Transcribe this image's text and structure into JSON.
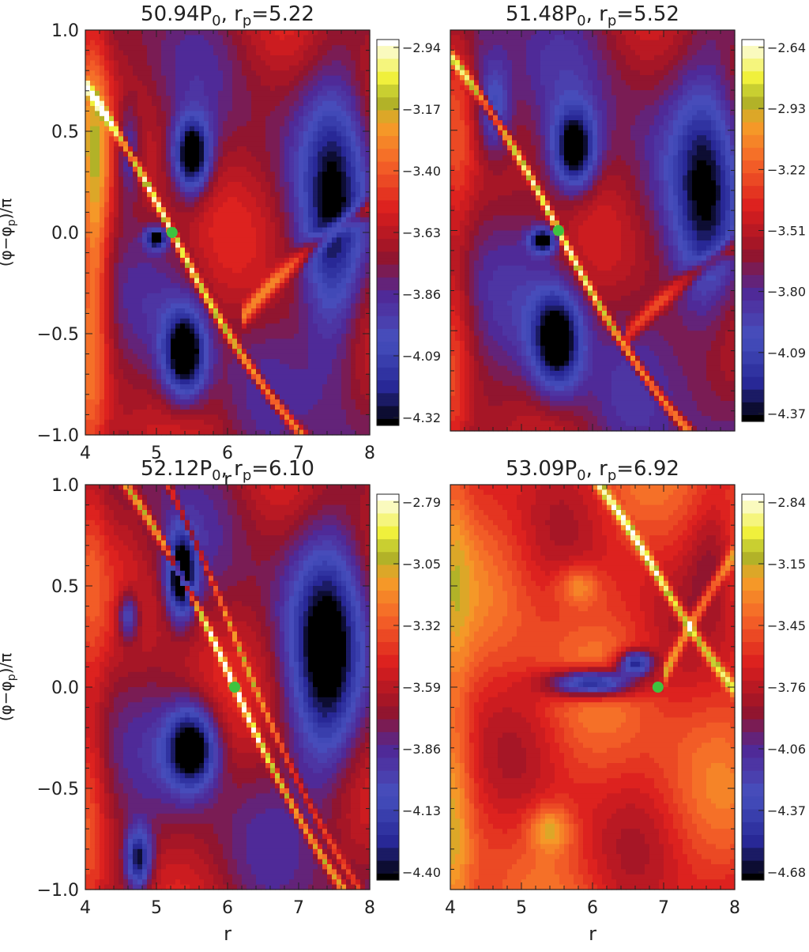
{
  "chart_data": [
    {
      "type": "heatmap",
      "title": "50.94P",
      "title_sub": "0",
      "title_mid": ",  r",
      "title_sub2": "p",
      "title_end": "=5.22",
      "ylabel_main": "(φ−φ",
      "ylabel_sub": "p",
      "ylabel_end": ")/π",
      "xlabel": "r",
      "xlim": [
        4,
        8
      ],
      "ylim": [
        -1.0,
        1.0
      ],
      "x_ticks": [
        "4",
        "5",
        "6",
        "7",
        "8"
      ],
      "y_ticks": [
        "1.0",
        "0.5",
        "0.0",
        "−0.5",
        "−1.0"
      ],
      "colorbar_ticks": [
        "−2.94",
        "−3.17",
        "−3.40",
        "−3.63",
        "−3.86",
        "−4.09",
        "−4.32"
      ],
      "colorbar_range": [
        -4.32,
        -2.94
      ],
      "planet": {
        "r": 5.22,
        "phi": 0.0
      },
      "background_level": 0.45,
      "features": [
        {
          "r": 5.5,
          "phi": 0.38,
          "sr": 0.25,
          "sp": 0.18,
          "amp": -0.55
        },
        {
          "r": 5.4,
          "phi": -0.6,
          "sr": 0.3,
          "sp": 0.22,
          "amp": -0.55
        },
        {
          "r": 4.6,
          "phi": 0.4,
          "sr": 0.18,
          "sp": 0.25,
          "amp": -0.25
        },
        {
          "r": 7.5,
          "phi": 0.0,
          "sr": 0.45,
          "sp": 0.7,
          "amp": -0.4
        },
        {
          "r": 4.15,
          "phi": 0.1,
          "sr": 0.2,
          "sp": 0.8,
          "amp": 0.2
        },
        {
          "r": 5.0,
          "phi": -0.03,
          "sr": 0.15,
          "sp": 0.05,
          "amp": -0.5
        }
      ],
      "spirals": [
        {
          "k": 0.7,
          "amp": 0.55,
          "width": 0.035,
          "r0": 4.0,
          "r1": 8.0
        },
        {
          "k": -0.55,
          "amp": 0.35,
          "width": 0.05,
          "r0": 6.2,
          "r1": 8.0,
          "offset": -0.9
        }
      ]
    },
    {
      "type": "heatmap",
      "title": "51.48P",
      "title_sub": "0",
      "title_mid": ",  r",
      "title_sub2": "p",
      "title_end": "=5.52",
      "ylabel_main": "",
      "ylabel_sub": "",
      "ylabel_end": "",
      "xlabel": "",
      "xlim": [
        4,
        8
      ],
      "ylim": [
        -1.0,
        1.0
      ],
      "x_ticks": [],
      "y_ticks": [],
      "colorbar_ticks": [
        "−2.64",
        "−2.93",
        "−3.22",
        "−3.51",
        "−3.80",
        "−4.09",
        "−4.37"
      ],
      "colorbar_range": [
        -4.37,
        -2.64
      ],
      "planet": {
        "r": 5.52,
        "phi": 0.0
      },
      "background_level": 0.42,
      "features": [
        {
          "r": 5.75,
          "phi": 0.4,
          "sr": 0.3,
          "sp": 0.2,
          "amp": -0.5
        },
        {
          "r": 5.5,
          "phi": -0.55,
          "sr": 0.35,
          "sp": 0.25,
          "amp": -0.5
        },
        {
          "r": 4.6,
          "phi": 0.6,
          "sr": 0.25,
          "sp": 0.25,
          "amp": -0.3
        },
        {
          "r": 7.6,
          "phi": 0.1,
          "sr": 0.45,
          "sp": 0.65,
          "amp": -0.35
        },
        {
          "r": 5.3,
          "phi": -0.05,
          "sr": 0.18,
          "sp": 0.06,
          "amp": -0.5
        }
      ],
      "spirals": [
        {
          "k": 0.7,
          "amp": 0.55,
          "width": 0.035,
          "r0": 4.0,
          "r1": 8.0
        },
        {
          "k": -0.5,
          "amp": 0.3,
          "width": 0.05,
          "r0": 6.5,
          "r1": 8.0,
          "offset": -0.95
        }
      ]
    },
    {
      "type": "heatmap",
      "title": "52.12P",
      "title_sub": "0",
      "title_mid": ",  r",
      "title_sub2": "p",
      "title_end": "=6.10",
      "ylabel_main": "(φ−φ",
      "ylabel_sub": "p",
      "ylabel_end": ")/π",
      "xlabel": "r",
      "xlim": [
        4,
        8
      ],
      "ylim": [
        -1.0,
        1.0
      ],
      "x_ticks": [
        "4",
        "5",
        "6",
        "7",
        "8"
      ],
      "y_ticks": [
        "1.0",
        "0.5",
        "0.0",
        "−0.5",
        "−1.0"
      ],
      "colorbar_ticks": [
        "−2.79",
        "−3.05",
        "−3.32",
        "−3.59",
        "−3.86",
        "−4.13",
        "−4.40"
      ],
      "colorbar_range": [
        -4.4,
        -2.79
      ],
      "planet": {
        "r": 6.1,
        "phi": 0.0
      },
      "background_level": 0.45,
      "features": [
        {
          "r": 5.35,
          "phi": 0.55,
          "sr": 0.2,
          "sp": 0.2,
          "amp": -0.55
        },
        {
          "r": 5.5,
          "phi": -0.3,
          "sr": 0.35,
          "sp": 0.2,
          "amp": -0.55
        },
        {
          "r": 4.75,
          "phi": -0.85,
          "sr": 0.18,
          "sp": 0.15,
          "amp": -0.45
        },
        {
          "r": 7.4,
          "phi": 0.1,
          "sr": 0.5,
          "sp": 0.6,
          "amp": -0.45
        },
        {
          "r": 4.6,
          "phi": 0.35,
          "sr": 0.15,
          "sp": 0.12,
          "amp": -0.3
        }
      ],
      "spirals": [
        {
          "k": 0.8,
          "amp": 0.55,
          "width": 0.035,
          "r0": 4.0,
          "r1": 8.0
        },
        {
          "k": 0.9,
          "amp": 0.3,
          "width": 0.03,
          "r0": 4.0,
          "r1": 8.0,
          "offset": 0.25
        }
      ]
    },
    {
      "type": "heatmap",
      "title": "53.09P",
      "title_sub": "0",
      "title_mid": ",  r",
      "title_sub2": "p",
      "title_end": "=6.92",
      "ylabel_main": "",
      "ylabel_sub": "",
      "ylabel_end": "",
      "xlabel": "r",
      "xlim": [
        4,
        8
      ],
      "ylim": [
        -1.0,
        1.0
      ],
      "x_ticks": [
        "4",
        "5",
        "6",
        "7",
        "8"
      ],
      "y_ticks": [],
      "colorbar_ticks": [
        "−2.84",
        "−3.15",
        "−3.45",
        "−3.76",
        "−4.06",
        "−4.37",
        "−4.68"
      ],
      "colorbar_range": [
        -4.68,
        -2.84
      ],
      "planet": {
        "r": 6.92,
        "phi": 0.0
      },
      "background_level": 0.6,
      "features": [
        {
          "r": 6.0,
          "phi": 0.02,
          "sr": 0.6,
          "sp": 0.07,
          "amp": -0.6
        },
        {
          "r": 6.6,
          "phi": 0.12,
          "sr": 0.25,
          "sp": 0.06,
          "amp": -0.5
        },
        {
          "r": 5.8,
          "phi": 0.5,
          "sr": 0.3,
          "sp": 0.1,
          "amp": 0.18
        },
        {
          "r": 5.4,
          "phi": -0.7,
          "sr": 0.3,
          "sp": 0.12,
          "amp": 0.2
        },
        {
          "r": 7.7,
          "phi": 0.65,
          "sr": 0.35,
          "sp": 0.3,
          "amp": -0.15
        }
      ],
      "spirals": [
        {
          "k": 0.6,
          "amp": 0.45,
          "width": 0.04,
          "r0": 4.0,
          "r1": 8.0,
          "offset": 0.55
        },
        {
          "k": -0.7,
          "amp": 0.3,
          "width": 0.05,
          "r0": 7.0,
          "r1": 8.0,
          "offset": 0.0
        }
      ]
    }
  ]
}
